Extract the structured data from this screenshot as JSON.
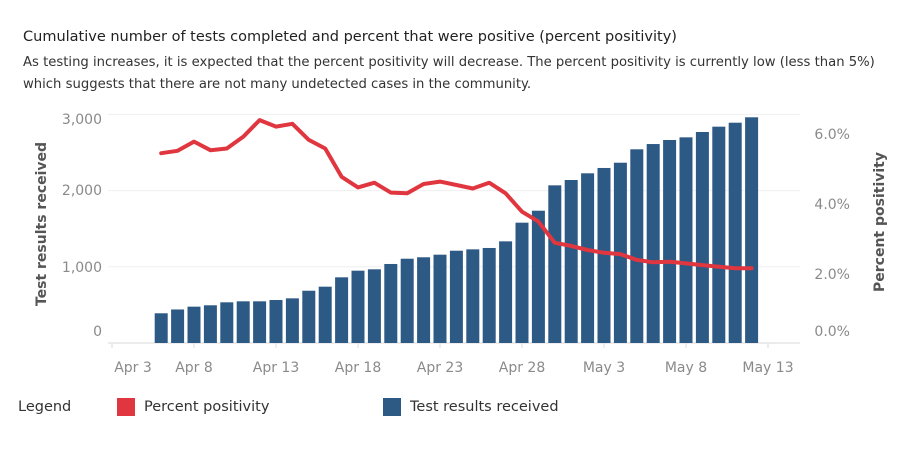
{
  "header": {
    "title": "Cumulative number of tests completed and percent that were positive (percent positivity)",
    "subtitle": "As testing increases, it is expected that the percent positivity will decrease. The percent positivity is currently low (less than 5%) which suggests that there are not many undetected cases in the community."
  },
  "legend": {
    "title": "Legend",
    "items": [
      {
        "label": "Percent positivity",
        "color": "#e0363f"
      },
      {
        "label": "Test results received",
        "color": "#2d5985"
      }
    ]
  },
  "chart_data": {
    "type": "bar+line",
    "title": "Cumulative number of tests completed and percent that were positive (percent positivity)",
    "ylabel": "Test results received",
    "y2label": "Percent positivity",
    "ylim": [
      0,
      3000
    ],
    "y2lim": [
      0,
      6.0
    ],
    "y_ticks": [
      "0",
      "1,000",
      "2,000",
      "3,000"
    ],
    "y2_ticks": [
      "0.0%",
      "2.0%",
      "4.0%",
      "6.0%"
    ],
    "x_ticks": [
      "Apr 3",
      "Apr 8",
      "Apr 13",
      "Apr 18",
      "Apr 23",
      "Apr 28",
      "May 3",
      "May 8",
      "May 13"
    ],
    "x_start": "Apr 6",
    "x_end": "May 12",
    "series": [
      {
        "name": "Test results received",
        "kind": "bar",
        "color": "#2d5985",
        "values": [
          390,
          440,
          477,
          495,
          534,
          547,
          547,
          564,
          586,
          686,
          739,
          862,
          949,
          967,
          1037,
          1106,
          1125,
          1159,
          1211,
          1229,
          1247,
          1334,
          1579,
          1736,
          2069,
          2139,
          2227,
          2297,
          2366,
          2542,
          2611,
          2664,
          2699,
          2769,
          2839,
          2891,
          2962
        ]
      },
      {
        "name": "Percent positivity",
        "kind": "line",
        "axis": "right",
        "color": "#e0363f",
        "values": [
          5.49,
          5.56,
          5.83,
          5.58,
          5.63,
          5.97,
          6.46,
          6.27,
          6.35,
          5.88,
          5.63,
          4.8,
          4.49,
          4.63,
          4.34,
          4.32,
          4.59,
          4.66,
          4.56,
          4.46,
          4.63,
          4.32,
          3.78,
          3.49,
          2.87,
          2.78,
          2.66,
          2.58,
          2.54,
          2.37,
          2.3,
          2.32,
          2.27,
          2.22,
          2.17,
          2.13,
          2.13
        ]
      }
    ]
  }
}
